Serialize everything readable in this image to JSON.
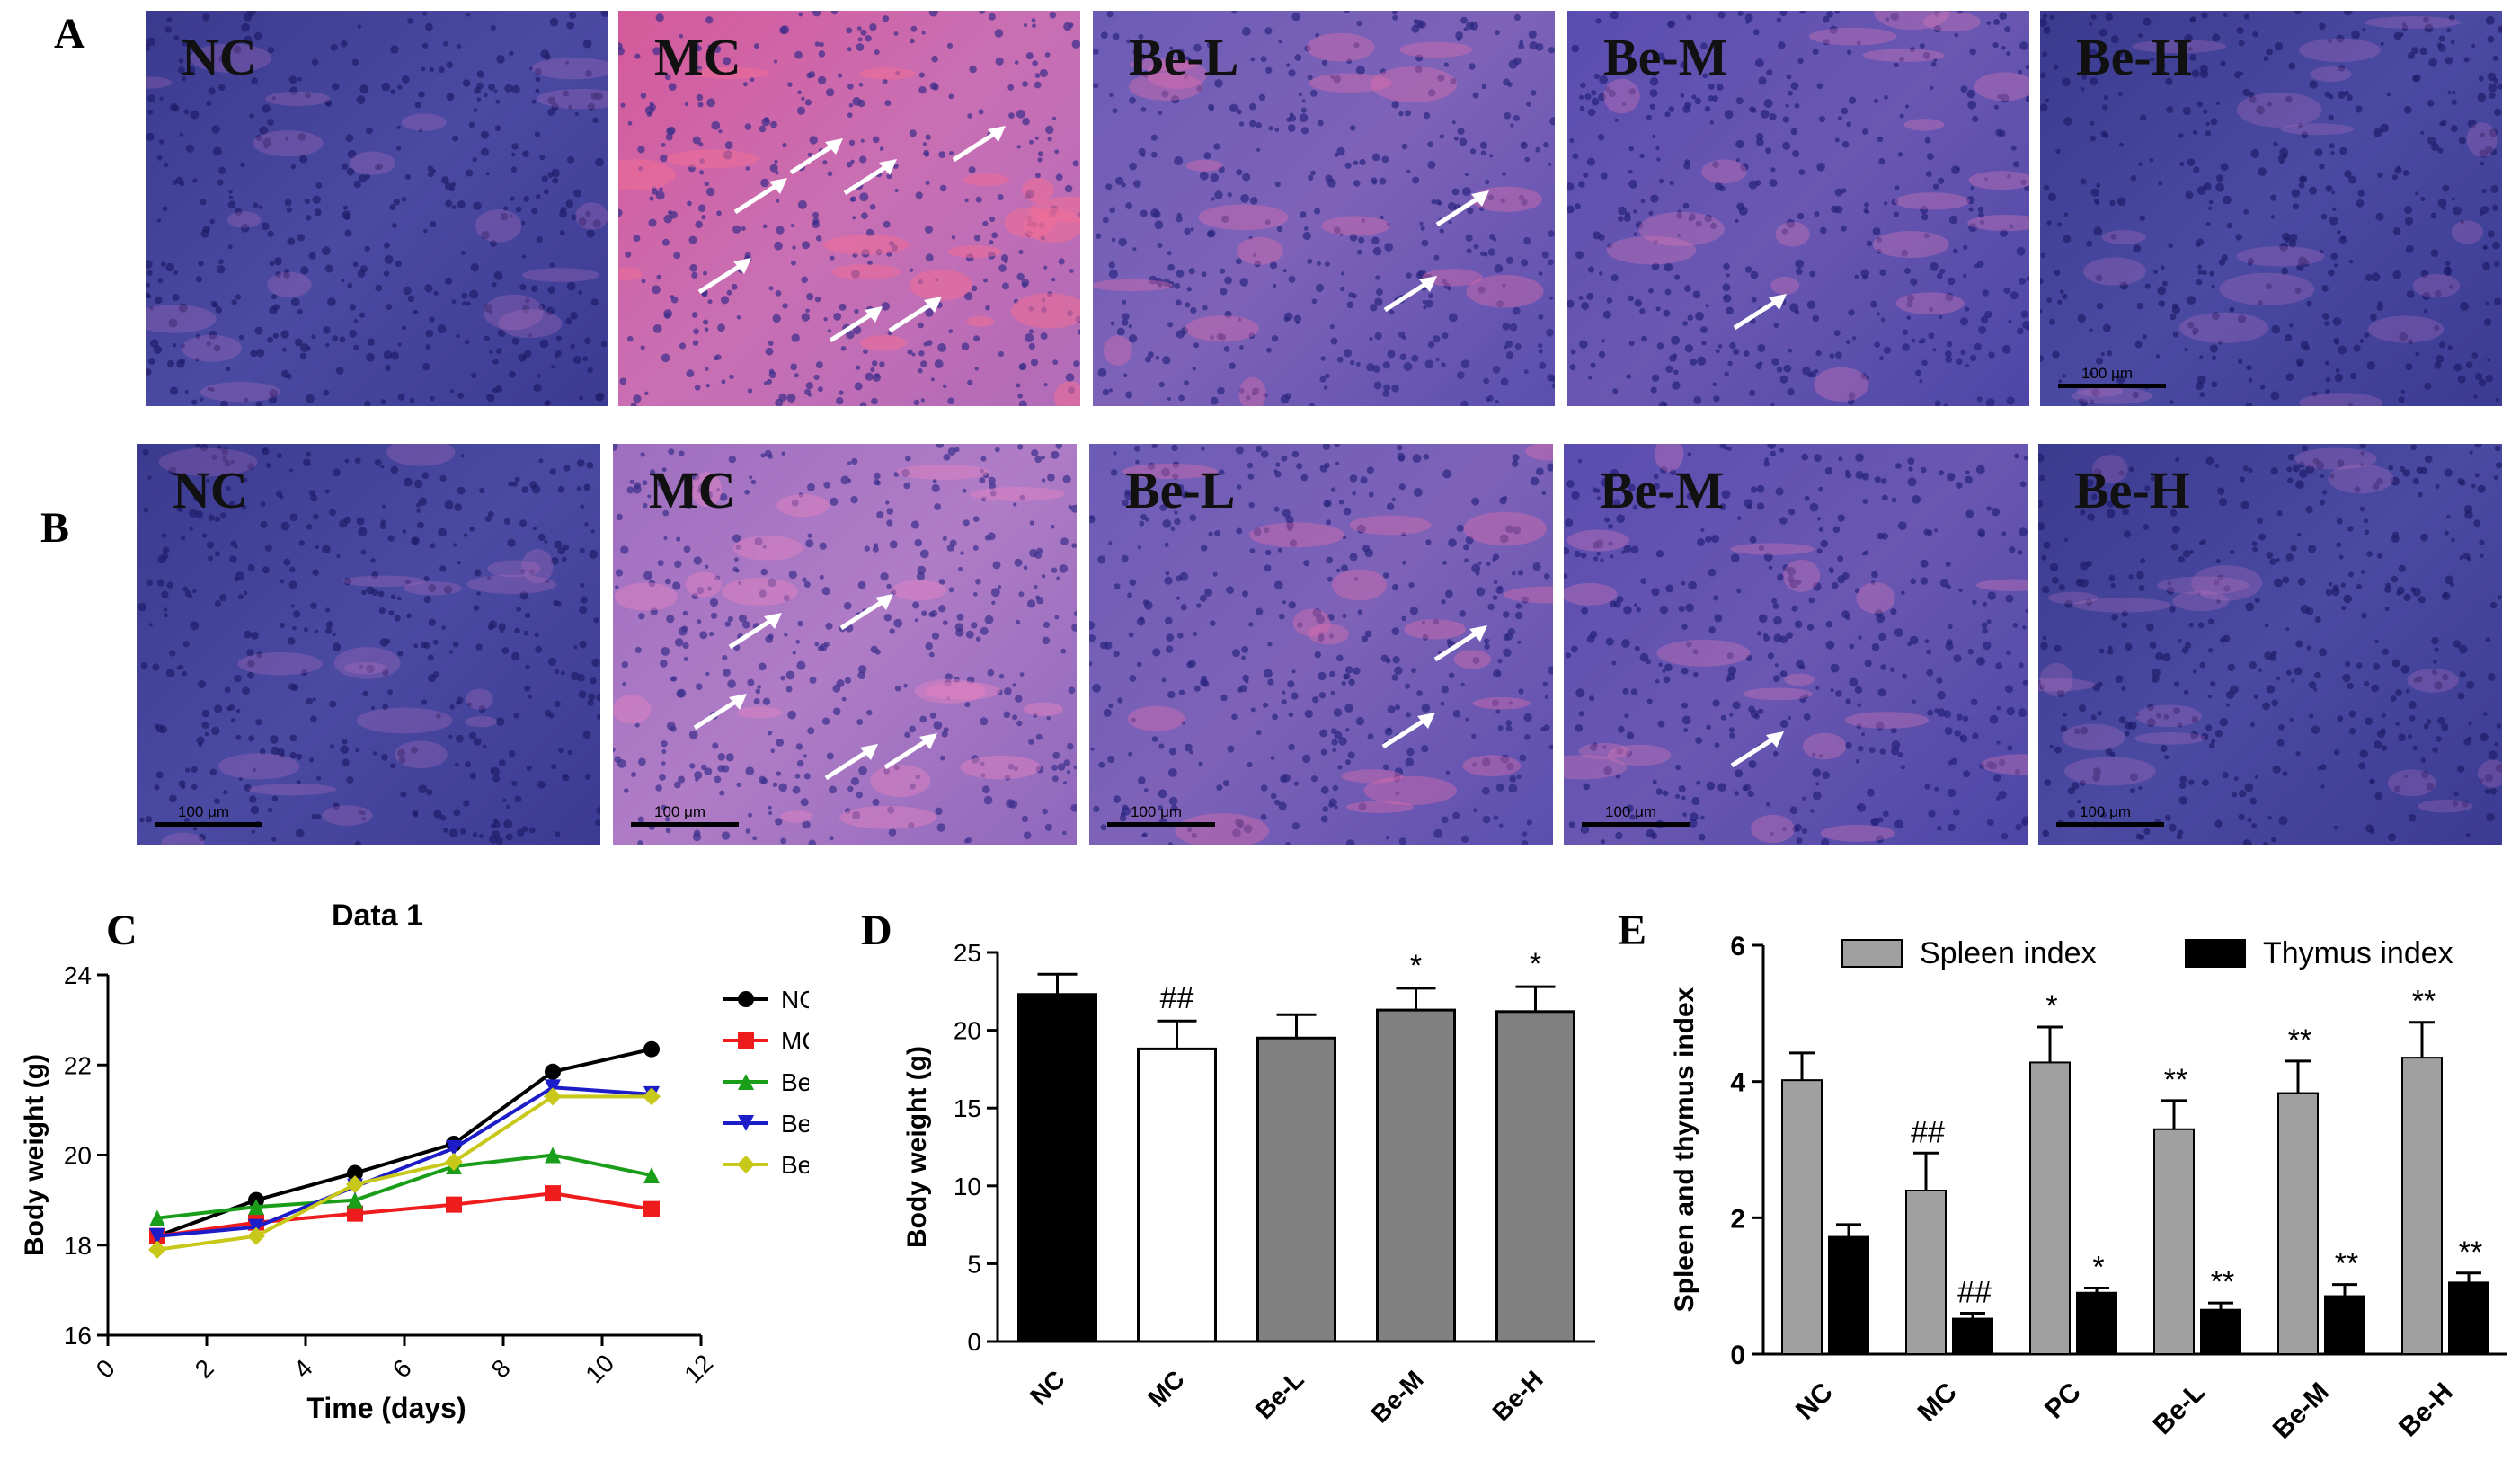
{
  "panel_letters": {
    "a": "A",
    "b": "B",
    "c": "C",
    "d": "D",
    "e": "E"
  },
  "micrographs": {
    "row_a": [
      {
        "label": "NC",
        "tone": "nc",
        "arrows": 0
      },
      {
        "label": "MC",
        "tone": "mc",
        "arrows": 7
      },
      {
        "label": "Be-L",
        "tone": "mid",
        "arrows": 2
      },
      {
        "label": "Be-M",
        "tone": "mid2",
        "arrows": 1
      },
      {
        "label": "Be-H",
        "tone": "nc",
        "arrows": 0,
        "scale": "100 μm"
      }
    ],
    "row_b": [
      {
        "label": "NC",
        "tone": "nc",
        "arrows": 0,
        "scale": "100 μm"
      },
      {
        "label": "MC",
        "tone": "mc2",
        "arrows": 5,
        "scale": "100 μm"
      },
      {
        "label": "Be-L",
        "tone": "mid",
        "arrows": 2,
        "scale": "100 μm"
      },
      {
        "label": "Be-M",
        "tone": "mid2",
        "arrows": 1,
        "scale": "100 μm"
      },
      {
        "label": "Be-H",
        "tone": "nc",
        "arrows": 0,
        "scale": "100 μm"
      }
    ]
  },
  "chart_data": [
    {
      "type": "line",
      "title": "Data 1",
      "xlabel": "Time (days)",
      "ylabel": "Body weight (g)",
      "xlim": [
        0,
        12
      ],
      "ylim": [
        16,
        24
      ],
      "xticks": [
        0,
        2,
        4,
        6,
        8,
        10,
        12
      ],
      "yticks": [
        16,
        18,
        20,
        22,
        24
      ],
      "x": [
        1,
        3,
        5,
        7,
        9,
        11
      ],
      "series": [
        {
          "name": "NC",
          "color": "#000000",
          "marker": "circle",
          "values": [
            18.2,
            19.0,
            19.6,
            20.25,
            21.85,
            22.35
          ]
        },
        {
          "name": "MC",
          "color": "#ee1c1c",
          "marker": "square",
          "values": [
            18.2,
            18.5,
            18.7,
            18.9,
            19.15,
            18.8
          ]
        },
        {
          "name": "Be-L",
          "color": "#1a9e1a",
          "marker": "triangle-up",
          "values": [
            18.6,
            18.85,
            19.0,
            19.75,
            20.0,
            19.55
          ]
        },
        {
          "name": "Be-M",
          "color": "#1c1cc8",
          "marker": "triangle-down",
          "values": [
            18.2,
            18.4,
            19.3,
            20.15,
            21.5,
            21.35
          ]
        },
        {
          "name": "Be-H",
          "color": "#c8c81a",
          "marker": "diamond",
          "values": [
            17.9,
            18.2,
            19.35,
            19.85,
            21.3,
            21.3
          ]
        }
      ]
    },
    {
      "type": "bar",
      "ylabel": "Body weight (g)",
      "ylim": [
        0,
        25
      ],
      "yticks": [
        0,
        5,
        10,
        15,
        20,
        25
      ],
      "categories": [
        "NC",
        "MC",
        "Be-L",
        "Be-M",
        "Be-H"
      ],
      "values": [
        22.3,
        18.8,
        19.5,
        21.3,
        21.2
      ],
      "errors": [
        1.3,
        1.8,
        1.5,
        1.4,
        1.6
      ],
      "fills": [
        "#000000",
        "#ffffff",
        "#808080",
        "#808080",
        "#808080"
      ],
      "annotations": [
        "",
        "##",
        "",
        "*",
        "*"
      ]
    },
    {
      "type": "bar",
      "ylabel": "Spleen and thymus index",
      "ylim": [
        0,
        6
      ],
      "yticks": [
        0,
        2,
        4,
        6
      ],
      "categories": [
        "NC",
        "MC",
        "PC",
        "Be-L",
        "Be-M",
        "Be-H"
      ],
      "series": [
        {
          "name": "Spleen index",
          "color": "#a0a0a0",
          "values": [
            4.02,
            2.4,
            4.28,
            3.3,
            3.83,
            4.35
          ],
          "errors": [
            0.4,
            0.55,
            0.52,
            0.42,
            0.47,
            0.52
          ],
          "annotations": [
            "",
            "##",
            "*",
            "**",
            "**",
            "**"
          ]
        },
        {
          "name": "Thymus index",
          "color": "#000000",
          "values": [
            1.72,
            0.52,
            0.9,
            0.65,
            0.85,
            1.05
          ],
          "errors": [
            0.18,
            0.08,
            0.07,
            0.1,
            0.17,
            0.14
          ],
          "annotations": [
            "",
            "##",
            "*",
            "**",
            "**",
            "**"
          ]
        }
      ],
      "legend": "top"
    }
  ]
}
